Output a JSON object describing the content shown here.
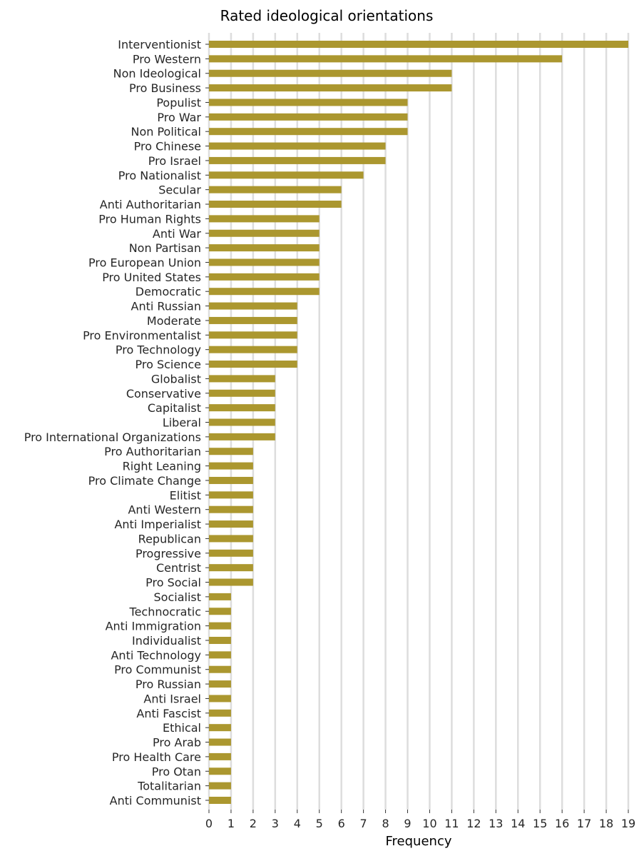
{
  "chart_data": {
    "type": "bar",
    "orientation": "horizontal",
    "title": "Rated ideological orientations",
    "xlabel": "Frequency",
    "ylabel": "",
    "xlim": [
      0,
      19
    ],
    "xticks": [
      "0",
      "1",
      "2",
      "3",
      "4",
      "5",
      "6",
      "7",
      "8",
      "9",
      "10",
      "11",
      "12",
      "13",
      "14",
      "15",
      "16",
      "17",
      "18",
      "19"
    ],
    "grid": "vertical",
    "bar_color": "#ab972f",
    "grid_color": "#dddddd",
    "categories": [
      "Interventionist",
      "Pro Western",
      "Non Ideological",
      "Pro Business",
      "Populist",
      "Pro War",
      "Non Political",
      "Pro Chinese",
      "Pro Israel",
      "Pro Nationalist",
      "Secular",
      "Anti Authoritarian",
      "Pro Human Rights",
      "Anti War",
      "Non Partisan",
      "Pro European Union",
      "Pro United States",
      "Democratic",
      "Anti Russian",
      "Moderate",
      "Pro Environmentalist",
      "Pro Technology",
      "Pro Science",
      "Globalist",
      "Conservative",
      "Capitalist",
      "Liberal",
      "Pro International Organizations",
      "Pro Authoritarian",
      "Right Leaning",
      "Pro Climate Change",
      "Elitist",
      "Anti Western",
      "Anti Imperialist",
      "Republican",
      "Progressive",
      "Centrist",
      "Pro Social",
      "Socialist",
      "Technocratic",
      "Anti Immigration",
      "Individualist",
      "Anti Technology",
      "Pro Communist",
      "Pro Russian",
      "Anti Israel",
      "Anti Fascist",
      "Ethical",
      "Pro Arab",
      "Pro Health Care",
      "Pro Otan",
      "Totalitarian",
      "Anti Communist"
    ],
    "values": [
      19,
      16,
      11,
      11,
      9,
      9,
      9,
      8,
      8,
      7,
      6,
      6,
      5,
      5,
      5,
      5,
      5,
      5,
      4,
      4,
      4,
      4,
      4,
      3,
      3,
      3,
      3,
      3,
      2,
      2,
      2,
      2,
      2,
      2,
      2,
      2,
      2,
      2,
      1,
      1,
      1,
      1,
      1,
      1,
      1,
      1,
      1,
      1,
      1,
      1,
      1,
      1,
      1
    ]
  }
}
